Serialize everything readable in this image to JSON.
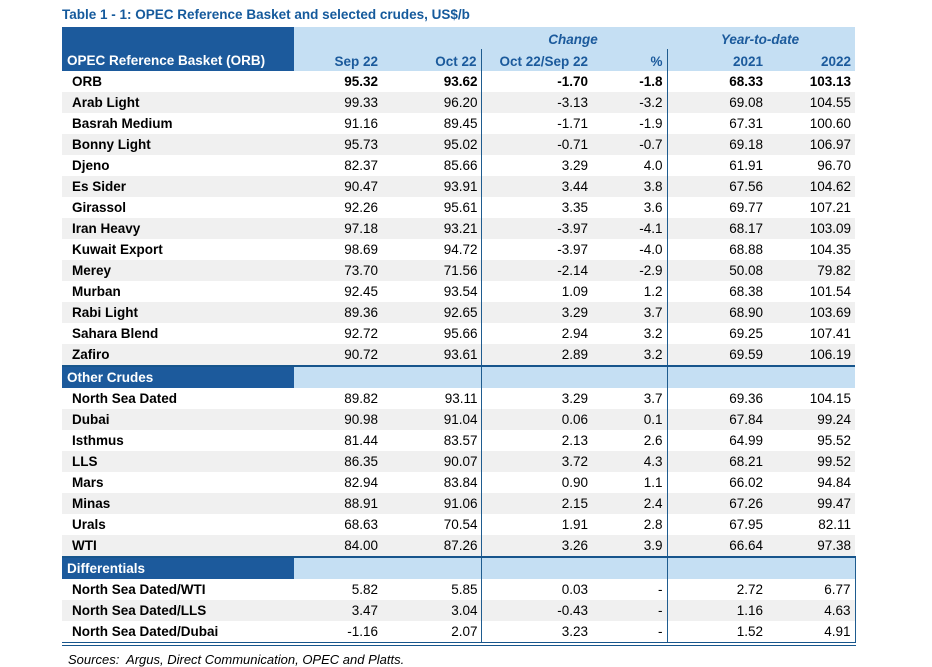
{
  "title": "Table 1 - 1: OPEC Reference Basket and selected crudes, US$/b",
  "table": {
    "corner_header": "OPEC Reference Basket (ORB)",
    "group_headers": {
      "change": "Change",
      "ytd": "Year-to-date"
    },
    "columns": [
      "Sep 22",
      "Oct 22",
      "Oct 22/Sep 22",
      "%",
      "2021",
      "2022"
    ],
    "sections": [
      {
        "header": null,
        "rows": [
          {
            "label": "ORB",
            "values": [
              "95.32",
              "93.62",
              "-1.70",
              "-1.8",
              "68.33",
              "103.13"
            ],
            "bold": true
          },
          {
            "label": "Arab Light",
            "values": [
              "99.33",
              "96.20",
              "-3.13",
              "-3.2",
              "69.08",
              "104.55"
            ]
          },
          {
            "label": "Basrah Medium",
            "values": [
              "91.16",
              "89.45",
              "-1.71",
              "-1.9",
              "67.31",
              "100.60"
            ]
          },
          {
            "label": "Bonny Light",
            "values": [
              "95.73",
              "95.02",
              "-0.71",
              "-0.7",
              "69.18",
              "106.97"
            ]
          },
          {
            "label": "Djeno",
            "values": [
              "82.37",
              "85.66",
              "3.29",
              "4.0",
              "61.91",
              "96.70"
            ]
          },
          {
            "label": "Es Sider",
            "values": [
              "90.47",
              "93.91",
              "3.44",
              "3.8",
              "67.56",
              "104.62"
            ]
          },
          {
            "label": "Girassol",
            "values": [
              "92.26",
              "95.61",
              "3.35",
              "3.6",
              "69.77",
              "107.21"
            ]
          },
          {
            "label": "Iran Heavy",
            "values": [
              "97.18",
              "93.21",
              "-3.97",
              "-4.1",
              "68.17",
              "103.09"
            ]
          },
          {
            "label": "Kuwait Export",
            "values": [
              "98.69",
              "94.72",
              "-3.97",
              "-4.0",
              "68.88",
              "104.35"
            ]
          },
          {
            "label": "Merey",
            "values": [
              "73.70",
              "71.56",
              "-2.14",
              "-2.9",
              "50.08",
              "79.82"
            ]
          },
          {
            "label": "Murban",
            "values": [
              "92.45",
              "93.54",
              "1.09",
              "1.2",
              "68.38",
              "101.54"
            ]
          },
          {
            "label": "Rabi Light",
            "values": [
              "89.36",
              "92.65",
              "3.29",
              "3.7",
              "68.90",
              "103.69"
            ]
          },
          {
            "label": "Sahara Blend",
            "values": [
              "92.72",
              "95.66",
              "2.94",
              "3.2",
              "69.25",
              "107.41"
            ]
          },
          {
            "label": "Zafiro",
            "values": [
              "90.72",
              "93.61",
              "2.89",
              "3.2",
              "69.59",
              "106.19"
            ]
          }
        ]
      },
      {
        "header": "Other Crudes",
        "rows": [
          {
            "label": "North Sea Dated",
            "values": [
              "89.82",
              "93.11",
              "3.29",
              "3.7",
              "69.36",
              "104.15"
            ]
          },
          {
            "label": "Dubai",
            "values": [
              "90.98",
              "91.04",
              "0.06",
              "0.1",
              "67.84",
              "99.24"
            ]
          },
          {
            "label": "Isthmus",
            "values": [
              "81.44",
              "83.57",
              "2.13",
              "2.6",
              "64.99",
              "95.52"
            ]
          },
          {
            "label": "LLS",
            "values": [
              "86.35",
              "90.07",
              "3.72",
              "4.3",
              "68.21",
              "99.52"
            ]
          },
          {
            "label": "Mars",
            "values": [
              "82.94",
              "83.84",
              "0.90",
              "1.1",
              "66.02",
              "94.84"
            ]
          },
          {
            "label": "Minas",
            "values": [
              "88.91",
              "91.06",
              "2.15",
              "2.4",
              "67.26",
              "99.47"
            ]
          },
          {
            "label": "Urals",
            "values": [
              "68.63",
              "70.54",
              "1.91",
              "2.8",
              "67.95",
              "82.11"
            ]
          },
          {
            "label": "WTI",
            "values": [
              "84.00",
              "87.26",
              "3.26",
              "3.9",
              "66.64",
              "97.38"
            ]
          }
        ]
      },
      {
        "header": "Differentials",
        "right_border": true,
        "rows": [
          {
            "label": "North Sea Dated/WTI",
            "values": [
              "5.82",
              "5.85",
              "0.03",
              "-",
              "2.72",
              "6.77"
            ]
          },
          {
            "label": "North Sea Dated/LLS",
            "values": [
              "3.47",
              "3.04",
              "-0.43",
              "-",
              "1.16",
              "4.63"
            ]
          },
          {
            "label": "North Sea Dated/Dubai",
            "values": [
              "-1.16",
              "2.07",
              "3.23",
              "-",
              "1.52",
              "4.91"
            ]
          }
        ]
      }
    ]
  },
  "sources": "Sources:  Argus, Direct Communication, OPEC and Platts.",
  "colors": {
    "dark_blue_fill": "#1C5A9C",
    "light_blue_fill": "#C5DFF3",
    "stripe_gray": "#F0F0F0",
    "border_blue": "#17558C",
    "title_blue": "#155A9C"
  }
}
